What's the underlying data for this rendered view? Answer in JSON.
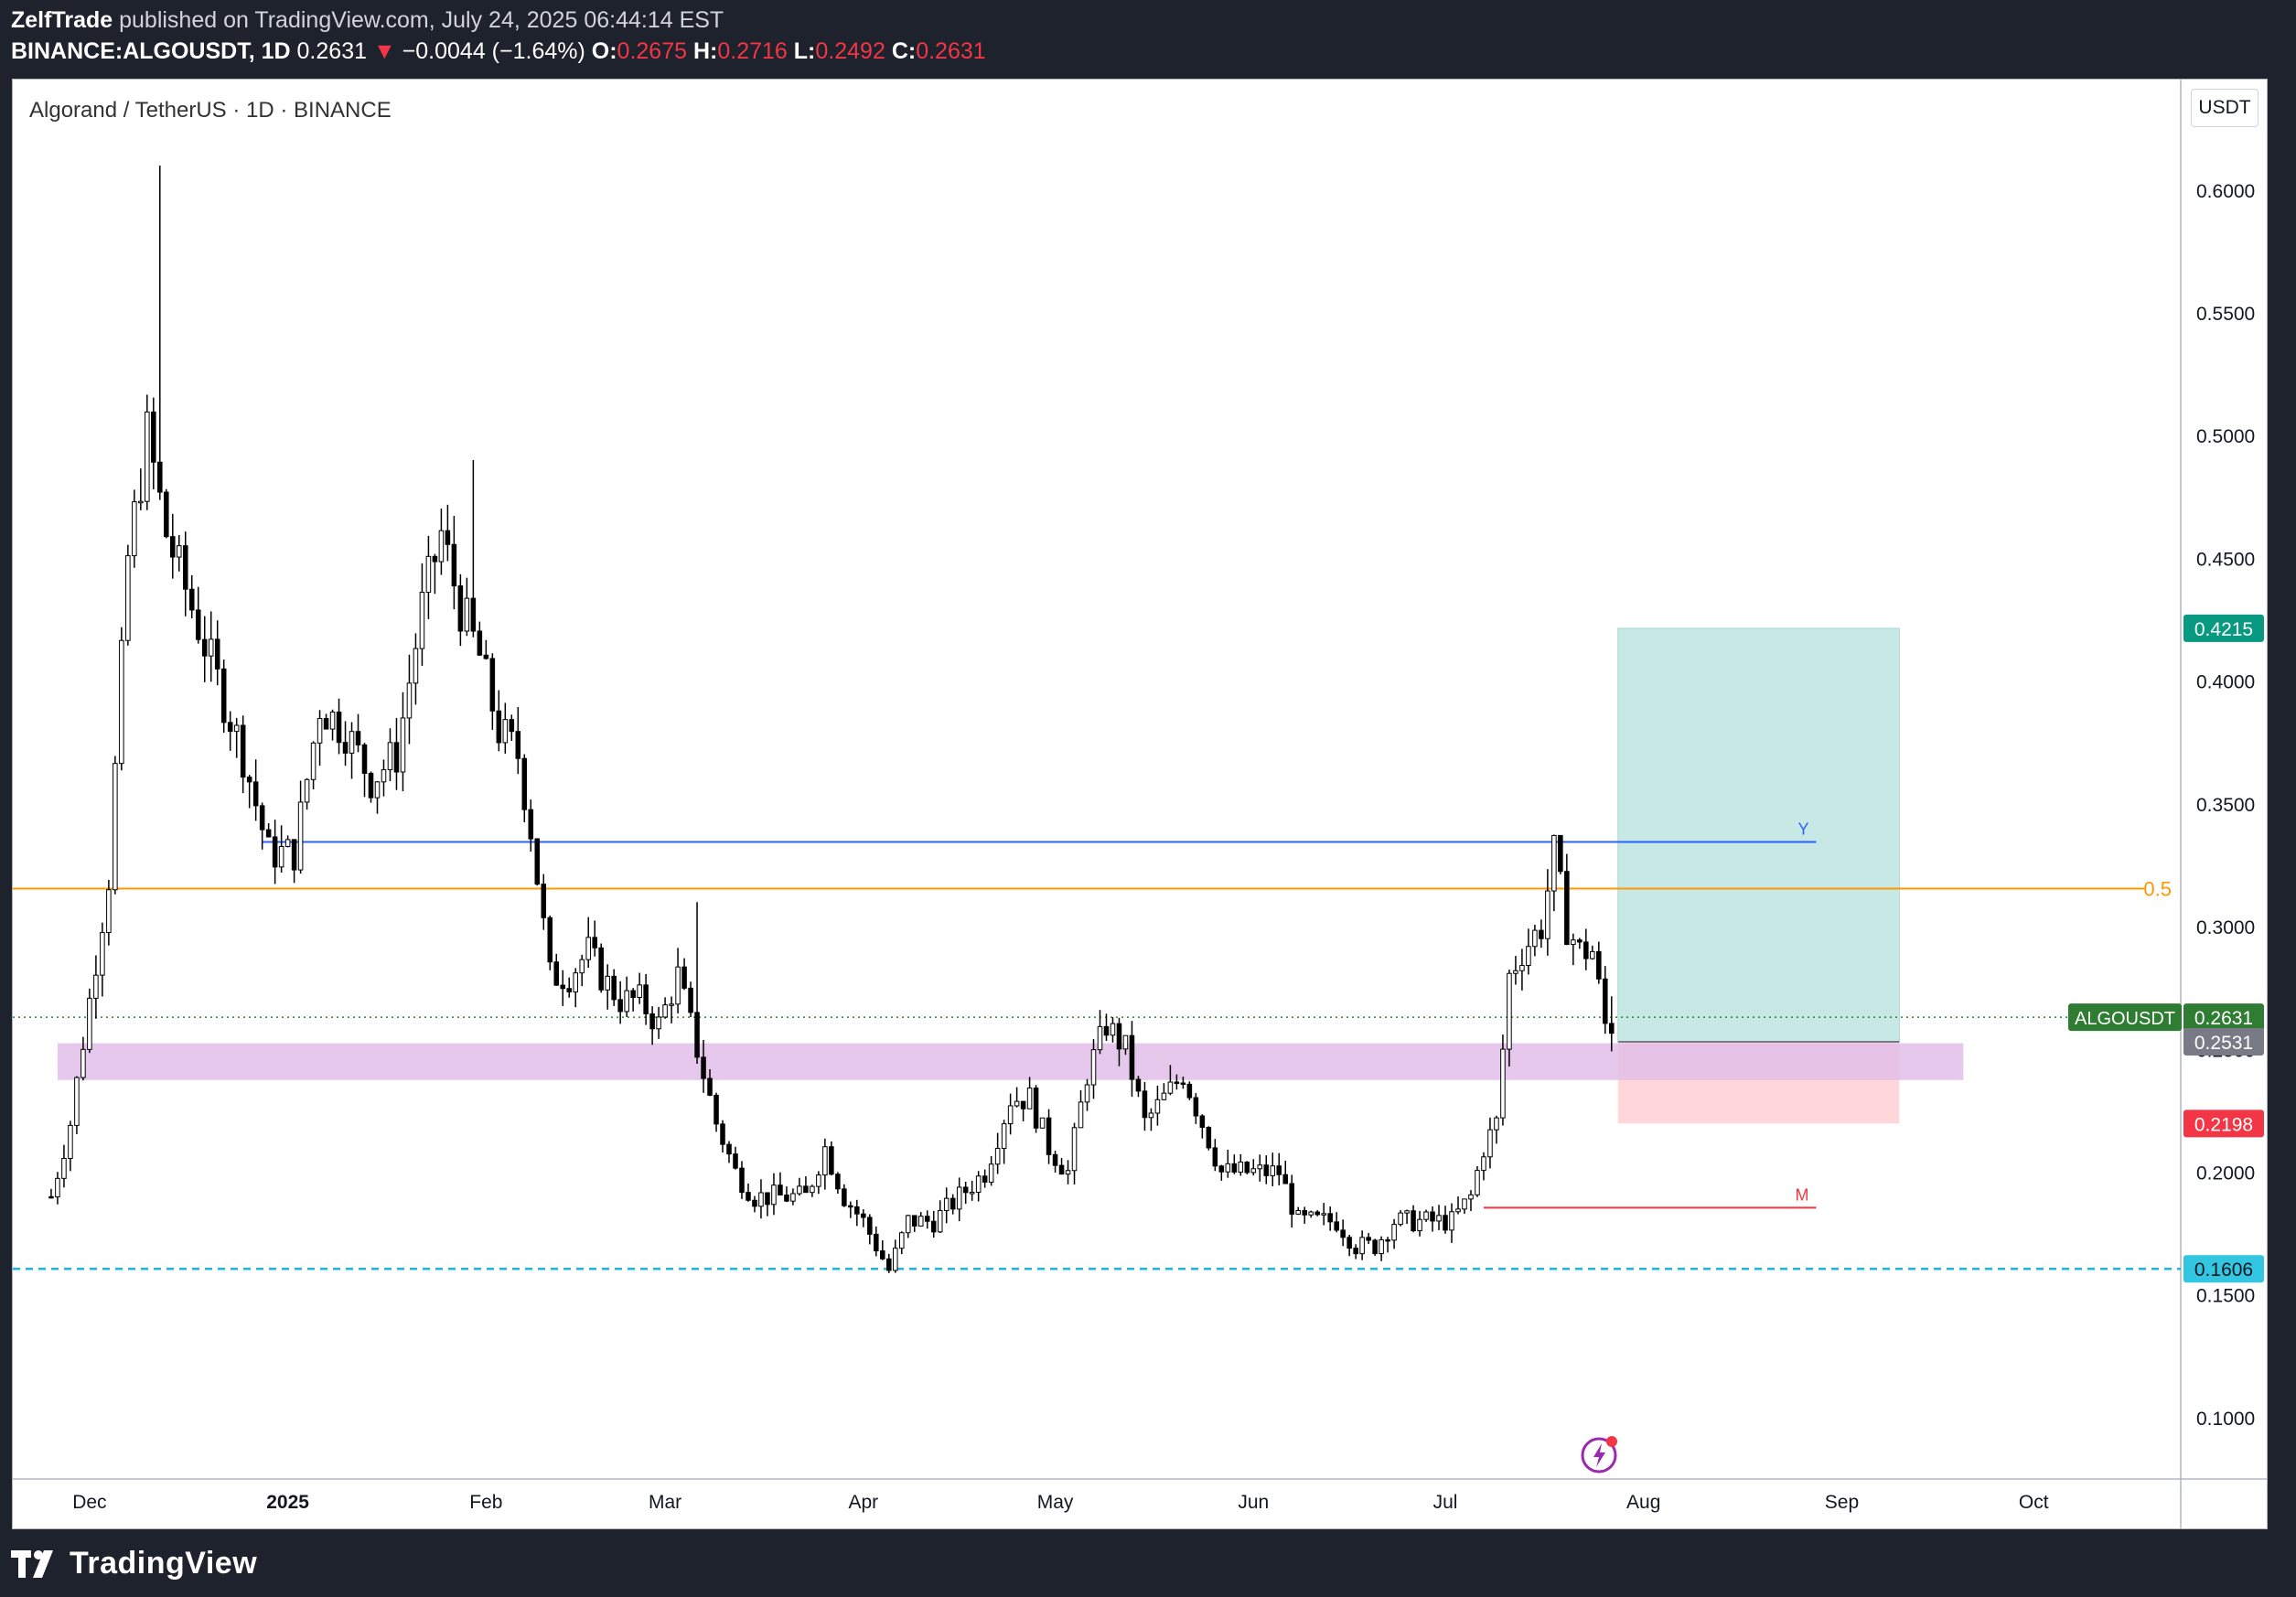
{
  "header": {
    "author": "ZelfTrade",
    "published": "published on TradingView.com, July 24, 2025 06:44:14 EST",
    "symbol": "BINANCE:ALGOUSDT, 1D",
    "last": "0.2631",
    "arrow": "▼",
    "change": "−0.0044 (−1.64%)",
    "o_label": "O:",
    "o_value": "0.2675",
    "h_label": "H:",
    "h_value": "0.2716",
    "l_label": "L:",
    "l_value": "0.2492",
    "c_label": "C:",
    "c_value": "0.2631"
  },
  "symbol_title": "Algorand / TetherUS · 1D · BINANCE",
  "currency_button": "USDT",
  "footer": {
    "brand": "TradingView"
  },
  "colors": {
    "up_candle": "#ffffff",
    "down_candle": "#000000",
    "wick": "#000000",
    "blue_line": "#2962ff",
    "orange_line": "#ff9800",
    "red_line": "#f23645",
    "cyan_dashed": "#22b5d8",
    "zone": "#e1bee7",
    "target": "#b2dfdb",
    "stop": "#ffcdd2",
    "label_green": "#089981",
    "label_dark_green": "#2e7d32",
    "label_red": "#f23645",
    "label_cyan": "#33c6e0",
    "label_grey": "#787b86"
  },
  "chart_data": {
    "type": "candlestick",
    "title": "Algorand / TetherUS · 1D · BINANCE",
    "y_axis": {
      "ticks": [
        "0.6000",
        "0.5500",
        "0.5000",
        "0.4500",
        "0.4000",
        "0.3500",
        "0.3000",
        "0.2500",
        "0.2000",
        "0.1500",
        "0.1000"
      ],
      "tick_values": [
        0.6,
        0.55,
        0.5,
        0.45,
        0.4,
        0.35,
        0.3,
        0.25,
        0.2,
        0.15,
        0.1
      ],
      "range": [
        0.075,
        0.645
      ],
      "currency": "USDT"
    },
    "x_axis": {
      "ticks": [
        "Dec",
        "2025",
        "Feb",
        "Mar",
        "Apr",
        "May",
        "Jun",
        "Jul",
        "Aug",
        "Sep",
        "Oct"
      ],
      "tick_days": [
        6,
        37,
        68,
        96,
        127,
        157,
        188,
        218,
        249,
        280,
        310
      ],
      "bold": [
        "2025"
      ],
      "day_range": [
        -6,
        333
      ]
    },
    "price_path": [
      [
        0,
        0.19
      ],
      [
        3,
        0.22
      ],
      [
        6,
        0.27
      ],
      [
        9,
        0.32
      ],
      [
        12,
        0.45
      ],
      [
        15,
        0.5
      ],
      [
        18,
        0.46
      ],
      [
        22,
        0.43
      ],
      [
        26,
        0.4
      ],
      [
        30,
        0.37
      ],
      [
        34,
        0.33
      ],
      [
        38,
        0.33
      ],
      [
        42,
        0.39
      ],
      [
        46,
        0.38
      ],
      [
        50,
        0.36
      ],
      [
        54,
        0.37
      ],
      [
        58,
        0.43
      ],
      [
        61,
        0.46
      ],
      [
        64,
        0.43
      ],
      [
        67,
        0.41
      ],
      [
        70,
        0.38
      ],
      [
        73,
        0.37
      ],
      [
        75,
        0.34
      ],
      [
        78,
        0.28
      ],
      [
        81,
        0.28
      ],
      [
        84,
        0.29
      ],
      [
        86,
        0.28
      ],
      [
        89,
        0.27
      ],
      [
        92,
        0.27
      ],
      [
        95,
        0.26
      ],
      [
        98,
        0.28
      ],
      [
        101,
        0.25
      ],
      [
        104,
        0.22
      ],
      [
        107,
        0.2
      ],
      [
        110,
        0.19
      ],
      [
        114,
        0.19
      ],
      [
        118,
        0.19
      ],
      [
        121,
        0.21
      ],
      [
        124,
        0.19
      ],
      [
        127,
        0.18
      ],
      [
        129,
        0.17
      ],
      [
        131,
        0.16
      ],
      [
        134,
        0.18
      ],
      [
        138,
        0.18
      ],
      [
        142,
        0.19
      ],
      [
        146,
        0.2
      ],
      [
        150,
        0.23
      ],
      [
        153,
        0.23
      ],
      [
        156,
        0.21
      ],
      [
        159,
        0.2
      ],
      [
        162,
        0.24
      ],
      [
        165,
        0.26
      ],
      [
        168,
        0.25
      ],
      [
        171,
        0.22
      ],
      [
        174,
        0.23
      ],
      [
        177,
        0.24
      ],
      [
        180,
        0.22
      ],
      [
        183,
        0.2
      ],
      [
        186,
        0.2
      ],
      [
        189,
        0.2
      ],
      [
        192,
        0.2
      ],
      [
        195,
        0.18
      ],
      [
        198,
        0.18
      ],
      [
        201,
        0.18
      ],
      [
        204,
        0.17
      ],
      [
        207,
        0.17
      ],
      [
        210,
        0.18
      ],
      [
        213,
        0.18
      ],
      [
        216,
        0.18
      ],
      [
        219,
        0.18
      ],
      [
        222,
        0.19
      ],
      [
        224,
        0.21
      ],
      [
        226,
        0.22
      ],
      [
        228,
        0.28
      ],
      [
        230,
        0.29
      ],
      [
        233,
        0.3
      ],
      [
        235,
        0.33
      ],
      [
        237,
        0.3
      ],
      [
        239,
        0.29
      ],
      [
        241,
        0.29
      ],
      [
        243,
        0.26
      ],
      [
        244,
        0.26
      ]
    ],
    "last_day": 244,
    "volatility_overrides": [
      [
        17,
        0.61
      ],
      [
        66,
        0.49
      ],
      [
        101,
        0.31
      ],
      [
        236,
        0.335
      ]
    ],
    "annotations": {
      "y_level": {
        "label": "Y",
        "value": 0.3345,
        "from_day": 33,
        "to_day": 276
      },
      "fib_05": {
        "label": "0.5",
        "value": 0.3155
      },
      "m_level": {
        "label": "M",
        "value": 0.1855,
        "from_day": 224,
        "to_day": 276
      },
      "support_dashed": {
        "value": 0.1606
      },
      "demand_zone": {
        "from_day": 1,
        "to_day": 299,
        "top": 0.2525,
        "bottom": 0.2375
      },
      "long_position": {
        "from_day": 245,
        "to_day": 289,
        "entry": 0.2531,
        "target": 0.4215,
        "stop": 0.2198
      },
      "last_price_line": {
        "value": 0.2631
      }
    },
    "price_labels": [
      {
        "text": "0.4215",
        "value": 0.4215,
        "color": "#089981",
        "name": "target-price-label"
      },
      {
        "text": "0.2631",
        "value": 0.2631,
        "color": "#2e7d32",
        "name": "last-price-label",
        "symbol": "ALGOUSDT"
      },
      {
        "text": "0.2531",
        "value": 0.2531,
        "color": "#787b86",
        "name": "entry-price-label"
      },
      {
        "text": "0.2198",
        "value": 0.2198,
        "color": "#f23645",
        "name": "stop-price-label"
      },
      {
        "text": "0.1606",
        "value": 0.1606,
        "color": "#33c6e0",
        "name": "support-price-label",
        "dark_text": true
      }
    ]
  }
}
